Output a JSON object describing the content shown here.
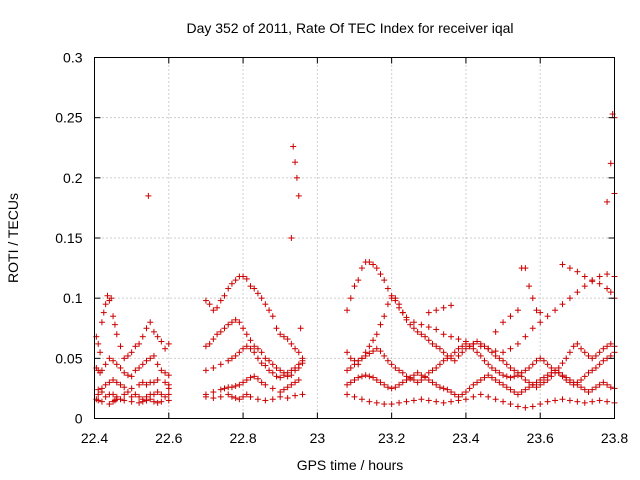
{
  "chart_data": {
    "type": "scatter",
    "title": "Day 352 of 2011, Rate Of TEC Index for receiver iqal",
    "xlabel": "GPS time / hours",
    "ylabel": "ROTI / TECUs",
    "xlim": [
      22.4,
      23.8
    ],
    "ylim": [
      0,
      0.3
    ],
    "xticks": [
      22.4,
      22.6,
      22.8,
      23.0,
      23.2,
      23.4,
      23.6,
      23.8
    ],
    "xtick_labels": [
      "22.4",
      "22.6",
      "22.8",
      "23",
      "23.2",
      "23.4",
      "23.6",
      "23.8"
    ],
    "yticks": [
      0,
      0.05,
      0.1,
      0.15,
      0.2,
      0.25,
      0.3
    ],
    "ytick_labels": [
      "0",
      "0.05",
      "0.1",
      "0.15",
      "0.2",
      "0.25",
      "0.3"
    ],
    "grid": true,
    "marker": "+",
    "color": "#cc0000",
    "series": [
      {
        "name": "ROTI",
        "x": [
          22.405,
          22.41,
          22.415,
          22.42,
          22.425,
          22.43,
          22.435,
          22.44,
          22.445,
          22.45,
          22.455,
          22.46,
          22.47,
          22.48,
          22.49,
          22.5,
          22.51,
          22.52,
          22.53,
          22.54,
          22.55,
          22.56,
          22.57,
          22.58,
          22.59,
          22.6,
          22.405,
          22.41,
          22.415,
          22.42,
          22.43,
          22.44,
          22.45,
          22.46,
          22.47,
          22.48,
          22.49,
          22.5,
          22.51,
          22.52,
          22.53,
          22.54,
          22.55,
          22.56,
          22.57,
          22.58,
          22.59,
          22.6,
          22.41,
          22.42,
          22.43,
          22.44,
          22.45,
          22.46,
          22.47,
          22.48,
          22.49,
          22.5,
          22.51,
          22.52,
          22.53,
          22.54,
          22.55,
          22.56,
          22.57,
          22.58,
          22.59,
          22.6,
          22.41,
          22.42,
          22.43,
          22.44,
          22.45,
          22.46,
          22.47,
          22.48,
          22.5,
          22.52,
          22.53,
          22.54,
          22.55,
          22.56,
          22.57,
          22.59,
          22.6,
          22.6,
          22.405,
          22.41,
          22.42,
          22.44,
          22.45,
          22.455,
          22.46,
          22.48,
          22.5,
          22.52,
          22.53,
          22.54,
          22.55,
          22.56,
          22.57,
          22.58,
          22.6,
          22.545,
          22.7,
          22.71,
          22.72,
          22.73,
          22.74,
          22.75,
          22.76,
          22.77,
          22.78,
          22.79,
          22.8,
          22.81,
          22.82,
          22.83,
          22.84,
          22.85,
          22.86,
          22.87,
          22.88,
          22.89,
          22.9,
          22.91,
          22.92,
          22.93,
          22.94,
          22.95,
          22.96,
          22.7,
          22.71,
          22.72,
          22.73,
          22.74,
          22.75,
          22.76,
          22.77,
          22.78,
          22.79,
          22.8,
          22.81,
          22.82,
          22.83,
          22.84,
          22.85,
          22.86,
          22.87,
          22.88,
          22.89,
          22.9,
          22.91,
          22.92,
          22.93,
          22.94,
          22.95,
          22.96,
          22.7,
          22.72,
          22.74,
          22.76,
          22.77,
          22.78,
          22.79,
          22.8,
          22.81,
          22.82,
          22.83,
          22.84,
          22.85,
          22.86,
          22.87,
          22.88,
          22.89,
          22.9,
          22.91,
          22.92,
          22.93,
          22.94,
          22.95,
          22.96,
          22.7,
          22.72,
          22.74,
          22.75,
          22.76,
          22.77,
          22.78,
          22.79,
          22.8,
          22.81,
          22.82,
          22.83,
          22.84,
          22.85,
          22.86,
          22.88,
          22.9,
          22.91,
          22.92,
          22.93,
          22.94,
          22.95,
          22.7,
          22.72,
          22.74,
          22.76,
          22.77,
          22.78,
          22.79,
          22.8,
          22.81,
          22.82,
          22.84,
          22.86,
          22.88,
          22.9,
          22.92,
          22.94,
          22.96,
          22.93,
          22.935,
          22.94,
          22.945,
          22.95,
          22.955,
          23.08,
          23.09,
          23.1,
          23.11,
          23.12,
          23.13,
          23.14,
          23.15,
          23.16,
          23.17,
          23.18,
          23.19,
          23.2,
          23.21,
          23.22,
          23.23,
          23.24,
          23.25,
          23.26,
          23.27,
          23.28,
          23.29,
          23.3,
          23.31,
          23.32,
          23.33,
          23.34,
          23.35,
          23.36,
          23.37,
          23.38,
          23.39,
          23.4,
          23.41,
          23.42,
          23.43,
          23.44,
          23.45,
          23.46,
          23.47,
          23.48,
          23.49,
          23.5,
          23.51,
          23.52,
          23.53,
          23.54,
          23.55,
          23.56,
          23.57,
          23.58,
          23.59,
          23.6,
          23.61,
          23.62,
          23.63,
          23.64,
          23.65,
          23.66,
          23.67,
          23.68,
          23.69,
          23.7,
          23.71,
          23.72,
          23.73,
          23.74,
          23.75,
          23.76,
          23.77,
          23.78,
          23.79,
          23.8,
          23.08,
          23.09,
          23.1,
          23.11,
          23.12,
          23.13,
          23.14,
          23.15,
          23.16,
          23.17,
          23.18,
          23.19,
          23.2,
          23.21,
          23.22,
          23.23,
          23.24,
          23.25,
          23.26,
          23.27,
          23.28,
          23.29,
          23.3,
          23.31,
          23.32,
          23.33,
          23.34,
          23.35,
          23.36,
          23.37,
          23.38,
          23.39,
          23.4,
          23.41,
          23.42,
          23.43,
          23.44,
          23.45,
          23.46,
          23.47,
          23.48,
          23.49,
          23.5,
          23.51,
          23.52,
          23.53,
          23.54,
          23.55,
          23.56,
          23.57,
          23.58,
          23.59,
          23.6,
          23.61,
          23.62,
          23.63,
          23.64,
          23.65,
          23.66,
          23.67,
          23.68,
          23.69,
          23.7,
          23.71,
          23.72,
          23.73,
          23.74,
          23.75,
          23.76,
          23.77,
          23.78,
          23.79,
          23.8,
          23.08,
          23.09,
          23.1,
          23.11,
          23.12,
          23.13,
          23.14,
          23.15,
          23.16,
          23.17,
          23.18,
          23.19,
          23.2,
          23.21,
          23.22,
          23.23,
          23.24,
          23.25,
          23.26,
          23.27,
          23.28,
          23.29,
          23.3,
          23.31,
          23.32,
          23.33,
          23.34,
          23.35,
          23.36,
          23.37,
          23.38,
          23.39,
          23.4,
          23.41,
          23.42,
          23.43,
          23.44,
          23.45,
          23.46,
          23.47,
          23.48,
          23.49,
          23.5,
          23.51,
          23.52,
          23.53,
          23.54,
          23.55,
          23.56,
          23.57,
          23.58,
          23.59,
          23.6,
          23.61,
          23.62,
          23.63,
          23.64,
          23.65,
          23.66,
          23.67,
          23.68,
          23.69,
          23.7,
          23.71,
          23.72,
          23.73,
          23.74,
          23.75,
          23.76,
          23.77,
          23.78,
          23.79,
          23.8,
          23.08,
          23.1,
          23.12,
          23.14,
          23.16,
          23.18,
          23.2,
          23.22,
          23.24,
          23.26,
          23.28,
          23.3,
          23.32,
          23.34,
          23.36,
          23.38,
          23.4,
          23.42,
          23.44,
          23.46,
          23.48,
          23.5,
          23.52,
          23.54,
          23.56,
          23.58,
          23.6,
          23.62,
          23.64,
          23.66,
          23.68,
          23.7,
          23.72,
          23.74,
          23.76,
          23.78,
          23.8,
          23.08,
          23.09,
          23.1,
          23.11,
          23.12,
          23.13,
          23.14,
          23.15,
          23.16,
          23.17,
          23.18,
          23.19,
          23.2,
          23.21,
          23.22,
          23.23,
          23.24,
          23.26,
          23.28,
          23.3,
          23.32,
          23.34,
          23.36,
          23.38,
          23.4,
          23.42,
          23.44,
          23.46,
          23.48,
          23.5,
          23.52,
          23.54,
          23.56,
          23.58,
          23.6,
          23.62,
          23.64,
          23.66,
          23.68,
          23.7,
          23.72,
          23.74,
          23.76,
          23.78,
          23.8,
          23.3,
          23.32,
          23.34,
          23.36,
          23.48,
          23.5,
          23.52,
          23.54,
          23.55,
          23.56,
          23.57,
          23.58,
          23.59,
          23.6,
          23.66,
          23.68,
          23.7,
          23.72,
          23.74,
          23.76,
          23.78,
          23.79,
          23.8,
          23.78,
          23.79,
          23.795,
          23.8,
          23.8
        ],
        "y": [
          0.068,
          0.062,
          0.055,
          0.08,
          0.088,
          0.095,
          0.102,
          0.098,
          0.1,
          0.085,
          0.078,
          0.07,
          0.06,
          0.05,
          0.052,
          0.055,
          0.06,
          0.062,
          0.068,
          0.075,
          0.08,
          0.072,
          0.068,
          0.064,
          0.058,
          0.062,
          0.042,
          0.04,
          0.038,
          0.04,
          0.045,
          0.05,
          0.048,
          0.045,
          0.042,
          0.038,
          0.036,
          0.035,
          0.04,
          0.042,
          0.045,
          0.048,
          0.05,
          0.052,
          0.045,
          0.04,
          0.038,
          0.036,
          0.02,
          0.022,
          0.018,
          0.02,
          0.02,
          0.018,
          0.016,
          0.02,
          0.022,
          0.018,
          0.02,
          0.018,
          0.016,
          0.018,
          0.02,
          0.02,
          0.022,
          0.02,
          0.018,
          0.02,
          0.024,
          0.025,
          0.028,
          0.03,
          0.032,
          0.03,
          0.028,
          0.026,
          0.025,
          0.028,
          0.03,
          0.028,
          0.03,
          0.03,
          0.032,
          0.03,
          0.028,
          0.025,
          0.016,
          0.015,
          0.014,
          0.012,
          0.014,
          0.015,
          0.016,
          0.015,
          0.014,
          0.013,
          0.014,
          0.015,
          0.016,
          0.014,
          0.013,
          0.014,
          0.015,
          0.185,
          0.098,
          0.095,
          0.09,
          0.092,
          0.098,
          0.102,
          0.108,
          0.112,
          0.115,
          0.118,
          0.118,
          0.116,
          0.11,
          0.108,
          0.104,
          0.1,
          0.095,
          0.09,
          0.085,
          0.075,
          0.07,
          0.068,
          0.066,
          0.062,
          0.058,
          0.055,
          0.05,
          0.06,
          0.062,
          0.066,
          0.07,
          0.072,
          0.075,
          0.078,
          0.08,
          0.082,
          0.08,
          0.075,
          0.07,
          0.065,
          0.06,
          0.058,
          0.055,
          0.05,
          0.048,
          0.045,
          0.042,
          0.04,
          0.038,
          0.035,
          0.036,
          0.04,
          0.042,
          0.046,
          0.04,
          0.042,
          0.045,
          0.048,
          0.05,
          0.052,
          0.055,
          0.058,
          0.06,
          0.058,
          0.055,
          0.05,
          0.046,
          0.044,
          0.04,
          0.038,
          0.035,
          0.034,
          0.036,
          0.038,
          0.04,
          0.042,
          0.045,
          0.048,
          0.02,
          0.022,
          0.024,
          0.025,
          0.026,
          0.026,
          0.027,
          0.028,
          0.03,
          0.032,
          0.034,
          0.035,
          0.033,
          0.03,
          0.028,
          0.025,
          0.022,
          0.024,
          0.026,
          0.028,
          0.03,
          0.032,
          0.018,
          0.017,
          0.018,
          0.02,
          0.018,
          0.017,
          0.016,
          0.018,
          0.02,
          0.018,
          0.016,
          0.015,
          0.016,
          0.018,
          0.017,
          0.019,
          0.02,
          0.15,
          0.226,
          0.213,
          0.2,
          0.185,
          0.075,
          0.055,
          0.05,
          0.048,
          0.045,
          0.05,
          0.055,
          0.06,
          0.065,
          0.07,
          0.078,
          0.085,
          0.095,
          0.1,
          0.1,
          0.095,
          0.088,
          0.082,
          0.078,
          0.075,
          0.072,
          0.07,
          0.068,
          0.065,
          0.062,
          0.06,
          0.058,
          0.055,
          0.052,
          0.05,
          0.048,
          0.052,
          0.055,
          0.058,
          0.06,
          0.062,
          0.064,
          0.062,
          0.06,
          0.058,
          0.055,
          0.052,
          0.05,
          0.048,
          0.045,
          0.042,
          0.04,
          0.038,
          0.035,
          0.032,
          0.03,
          0.028,
          0.026,
          0.028,
          0.03,
          0.032,
          0.035,
          0.038,
          0.042,
          0.046,
          0.05,
          0.055,
          0.06,
          0.062,
          0.058,
          0.055,
          0.052,
          0.05,
          0.052,
          0.055,
          0.058,
          0.06,
          0.062,
          0.06,
          0.04,
          0.042,
          0.045,
          0.048,
          0.05,
          0.052,
          0.054,
          0.056,
          0.058,
          0.056,
          0.052,
          0.048,
          0.045,
          0.042,
          0.04,
          0.038,
          0.035,
          0.033,
          0.032,
          0.03,
          0.032,
          0.035,
          0.038,
          0.04,
          0.042,
          0.045,
          0.048,
          0.05,
          0.052,
          0.055,
          0.058,
          0.06,
          0.062,
          0.06,
          0.058,
          0.055,
          0.052,
          0.048,
          0.045,
          0.042,
          0.04,
          0.038,
          0.036,
          0.035,
          0.034,
          0.035,
          0.036,
          0.038,
          0.04,
          0.042,
          0.045,
          0.048,
          0.05,
          0.048,
          0.045,
          0.042,
          0.04,
          0.038,
          0.035,
          0.032,
          0.03,
          0.028,
          0.03,
          0.032,
          0.035,
          0.038,
          0.04,
          0.042,
          0.045,
          0.048,
          0.05,
          0.052,
          0.055,
          0.028,
          0.03,
          0.032,
          0.034,
          0.035,
          0.036,
          0.035,
          0.034,
          0.032,
          0.03,
          0.028,
          0.026,
          0.025,
          0.026,
          0.028,
          0.03,
          0.032,
          0.034,
          0.036,
          0.038,
          0.036,
          0.034,
          0.032,
          0.03,
          0.028,
          0.026,
          0.025,
          0.024,
          0.022,
          0.02,
          0.018,
          0.02,
          0.022,
          0.025,
          0.028,
          0.03,
          0.032,
          0.034,
          0.036,
          0.034,
          0.032,
          0.03,
          0.028,
          0.026,
          0.024,
          0.022,
          0.02,
          0.022,
          0.024,
          0.026,
          0.028,
          0.03,
          0.032,
          0.034,
          0.036,
          0.038,
          0.04,
          0.038,
          0.036,
          0.034,
          0.032,
          0.03,
          0.028,
          0.026,
          0.024,
          0.022,
          0.024,
          0.026,
          0.028,
          0.03,
          0.028,
          0.026,
          0.025,
          0.02,
          0.018,
          0.016,
          0.014,
          0.013,
          0.012,
          0.012,
          0.013,
          0.014,
          0.015,
          0.016,
          0.015,
          0.014,
          0.013,
          0.014,
          0.015,
          0.016,
          0.018,
          0.02,
          0.018,
          0.016,
          0.014,
          0.012,
          0.01,
          0.009,
          0.01,
          0.012,
          0.014,
          0.015,
          0.016,
          0.015,
          0.014,
          0.013,
          0.014,
          0.015,
          0.014,
          0.013,
          0.09,
          0.1,
          0.11,
          0.115,
          0.125,
          0.13,
          0.13,
          0.128,
          0.125,
          0.12,
          0.115,
          0.108,
          0.102,
          0.098,
          0.092,
          0.088,
          0.084,
          0.08,
          0.078,
          0.076,
          0.074,
          0.07,
          0.068,
          0.066,
          0.064,
          0.062,
          0.06,
          0.058,
          0.056,
          0.055,
          0.058,
          0.062,
          0.068,
          0.075,
          0.08,
          0.085,
          0.09,
          0.095,
          0.1,
          0.105,
          0.11,
          0.114,
          0.118,
          0.12,
          0.118,
          0.088,
          0.09,
          0.092,
          0.094,
          0.072,
          0.08,
          0.085,
          0.09,
          0.125,
          0.125,
          0.11,
          0.1,
          0.09,
          0.088,
          0.128,
          0.125,
          0.122,
          0.118,
          0.115,
          0.112,
          0.108,
          0.105,
          0.1,
          0.18,
          0.212,
          0.253,
          0.25,
          0.187
        ]
      }
    ]
  }
}
